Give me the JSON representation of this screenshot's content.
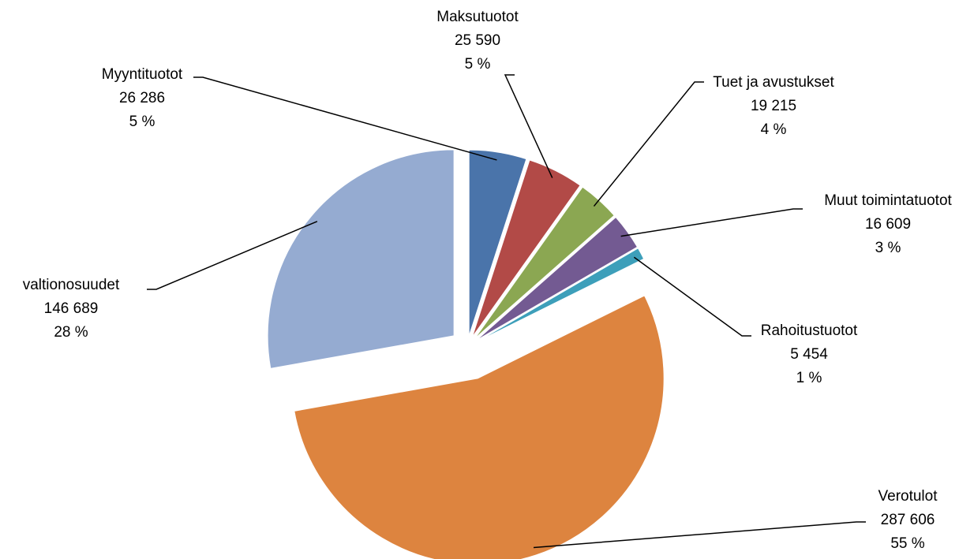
{
  "chart_data": {
    "type": "pie",
    "categories": [
      "Myyntituotot",
      "Maksutuotot",
      "Tuet ja avustukset",
      "Muut toimintatuotot",
      "Rahoitustuotot",
      "Verotulot",
      "valtionosuudet"
    ],
    "values": [
      26286,
      25590,
      19215,
      16609,
      5454,
      287606,
      146689
    ],
    "value_labels": [
      "26 286",
      "25 590",
      "19 215",
      "16 609",
      "5 454",
      "287 606",
      "146 689"
    ],
    "percent_labels": [
      "5 %",
      "5 %",
      "4 %",
      "3 %",
      "1 %",
      "55 %",
      "28 %"
    ],
    "colors": [
      "#4a74aa",
      "#b24a47",
      "#8ba752",
      "#735a92",
      "#3d9fba",
      "#dd843f",
      "#95abd1"
    ]
  }
}
